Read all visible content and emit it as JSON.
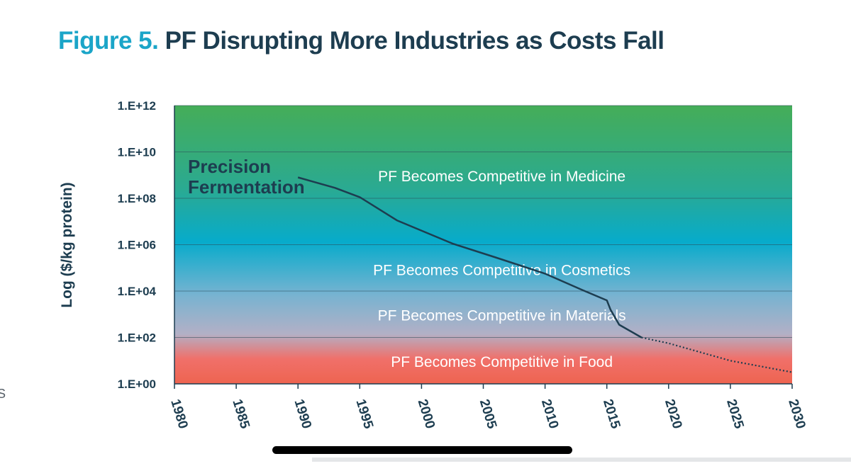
{
  "figure": {
    "number_label": "Figure 5.",
    "title": "PF Disrupting More Industries as Costs Fall"
  },
  "edge_fragment": "S",
  "colors": {
    "title_number": "#1ba5c8",
    "title_text": "#1d3d50",
    "band_top": "#45ad58",
    "band_upper_mid": "#2aaa92",
    "band_mid": "#07abcb",
    "band_lower_mid": "#77b3d1",
    "band_material": "#b2b0c6",
    "band_food": "#f0706a",
    "band_bottom": "#ee6450",
    "line": "#1d3d50",
    "zone_text": "#ffffff"
  },
  "chart_data": {
    "type": "line",
    "title": "PF Disrupting More Industries as Costs Fall",
    "xlabel": "",
    "ylabel": "Log ($/kg protein)",
    "y_scale": "log10",
    "xlim": [
      1980,
      2030
    ],
    "ylim_exponent": [
      0,
      12
    ],
    "x_ticks": [
      "1980",
      "1985",
      "1990",
      "1995",
      "2000",
      "2005",
      "2010",
      "2015",
      "2020",
      "2025",
      "2030"
    ],
    "y_ticks": [
      "1.E+00",
      "1.E+02",
      "1.E+04",
      "1.E+06",
      "1.E+08",
      "1.E+10",
      "1.E+12"
    ],
    "grid": "horizontal",
    "series": [
      {
        "name": "Precision Fermentation",
        "style": "solid",
        "x": [
          1990,
          1993,
          1995,
          1998,
          2002.5,
          2006,
          2010,
          2013,
          2015,
          2015.3,
          2016,
          2017.8
        ],
        "log10_y": [
          8.9,
          8.45,
          8.05,
          7.05,
          6.05,
          5.45,
          4.75,
          4.05,
          3.6,
          3.2,
          2.55,
          2.0
        ]
      },
      {
        "name": "Precision Fermentation (projected)",
        "style": "dotted",
        "x": [
          2017.8,
          2020,
          2025,
          2030
        ],
        "log10_y": [
          2.0,
          1.75,
          1.0,
          0.5
        ]
      }
    ],
    "zones": [
      {
        "label": "PF Becomes Competitive in Medicine",
        "x": 2006.5,
        "log10_y": 8.95
      },
      {
        "label": "PF Becomes Competitive in Cosmetics",
        "x": 2006.5,
        "log10_y": 4.9
      },
      {
        "label": "PF Becomes Competitive in Materials",
        "x": 2006.5,
        "log10_y": 2.95
      },
      {
        "label": "PF Becomes Competitive in Food",
        "x": 2006.5,
        "log10_y": 0.95
      }
    ],
    "series_label_lines": [
      "Precision",
      "Fermentation"
    ]
  }
}
